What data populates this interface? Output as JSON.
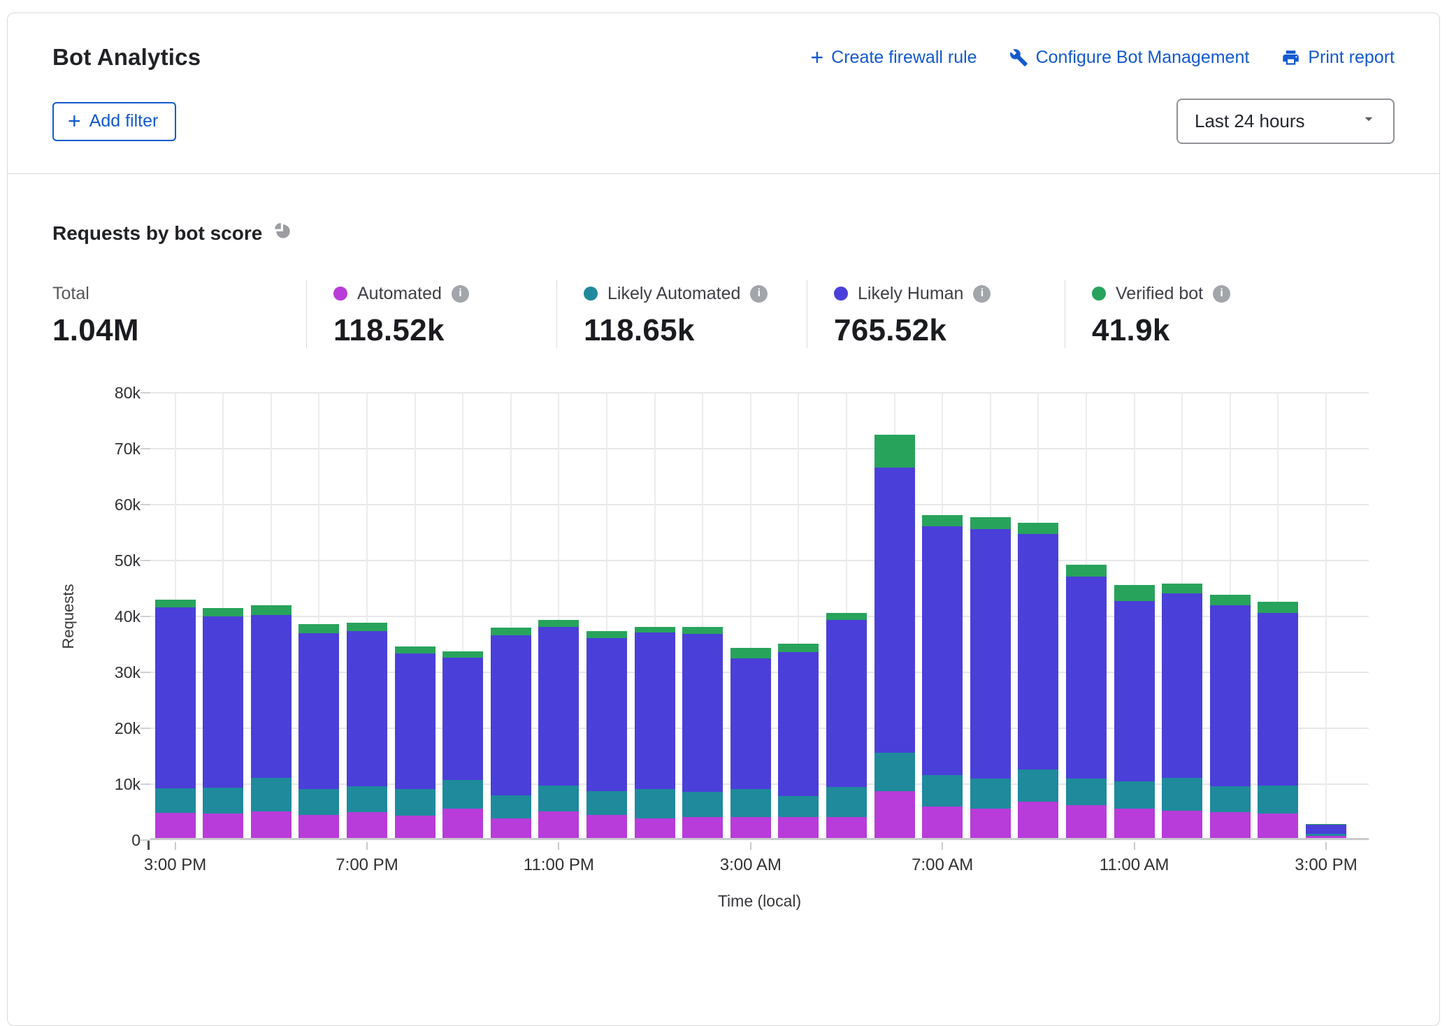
{
  "header": {
    "title": "Bot Analytics",
    "links": [
      {
        "icon": "plus-icon",
        "label": "Create firewall rule"
      },
      {
        "icon": "wrench-icon",
        "label": "Configure Bot Management"
      },
      {
        "icon": "printer-icon",
        "label": "Print report"
      }
    ],
    "add_filter_label": "Add filter",
    "time_range_value": "Last 24 hours"
  },
  "section": {
    "title": "Requests by bot score"
  },
  "stats": {
    "total": {
      "label": "Total",
      "value": "1.04M"
    },
    "items": [
      {
        "label": "Automated",
        "value": "118.52k",
        "color": "#b83cd9"
      },
      {
        "label": "Likely Automated",
        "value": "118.65k",
        "color": "#1e8a9c"
      },
      {
        "label": "Likely Human",
        "value": "765.52k",
        "color": "#4a3fd8"
      },
      {
        "label": "Verified bot",
        "value": "41.9k",
        "color": "#28a35c"
      }
    ]
  },
  "chart_data": {
    "type": "bar",
    "stacked": true,
    "title": "Requests by bot score",
    "xlabel": "Time (local)",
    "ylabel": "Requests",
    "unit": "thousands of requests",
    "ylim_k": [
      0,
      80
    ],
    "y_ticks": [
      "0",
      "10k",
      "20k",
      "30k",
      "40k",
      "50k",
      "60k",
      "70k",
      "80k"
    ],
    "grid": true,
    "x_tick_every": 4,
    "categories": [
      "3:00 PM",
      "4:00 PM",
      "5:00 PM",
      "6:00 PM",
      "7:00 PM",
      "8:00 PM",
      "9:00 PM",
      "10:00 PM",
      "11:00 PM",
      "12:00 AM",
      "1:00 AM",
      "2:00 AM",
      "3:00 AM",
      "4:00 AM",
      "5:00 AM",
      "6:00 AM",
      "7:00 AM",
      "8:00 AM",
      "9:00 AM",
      "10:00 AM",
      "11:00 AM",
      "12:00 PM",
      "1:00 PM",
      "2:00 PM",
      "3:00 PM"
    ],
    "series": [
      {
        "name": "Automated",
        "color": "#b83cd9",
        "values_k": [
          4.5,
          4.4,
          4.75,
          4.1,
          4.6,
          4.0,
          5.2,
          3.5,
          4.7,
          4.1,
          3.5,
          3.8,
          3.75,
          3.7,
          3.8,
          8.4,
          5.6,
          5.3,
          6.5,
          5.9,
          5.2,
          4.9,
          4.6,
          4.4,
          0.4
        ]
      },
      {
        "name": "Likely Automated",
        "color": "#1e8a9c",
        "values_k": [
          4.4,
          4.55,
          6.0,
          4.6,
          4.65,
          4.7,
          5.2,
          4.1,
          4.7,
          4.3,
          5.3,
          4.5,
          5.0,
          3.8,
          5.3,
          6.8,
          5.7,
          5.3,
          5.7,
          4.7,
          4.9,
          5.85,
          4.6,
          5.0,
          0.35
        ]
      },
      {
        "name": "Likely Human",
        "color": "#4a3fd8",
        "values_k": [
          32.3,
          30.65,
          29.15,
          27.9,
          27.75,
          24.3,
          21.9,
          28.7,
          28.3,
          27.35,
          27.9,
          28.2,
          23.35,
          25.75,
          29.9,
          51.0,
          44.5,
          44.7,
          42.2,
          36.2,
          32.3,
          33.05,
          32.4,
          30.9,
          1.65
        ]
      },
      {
        "name": "Verified bot",
        "color": "#28a35c",
        "values_k": [
          1.4,
          1.5,
          1.7,
          1.6,
          1.5,
          1.2,
          1.1,
          1.3,
          1.3,
          1.25,
          1.1,
          1.3,
          1.9,
          1.45,
          1.3,
          5.9,
          1.9,
          2.1,
          2.0,
          2.1,
          2.9,
          1.7,
          1.9,
          2.0,
          0.05
        ]
      }
    ]
  }
}
